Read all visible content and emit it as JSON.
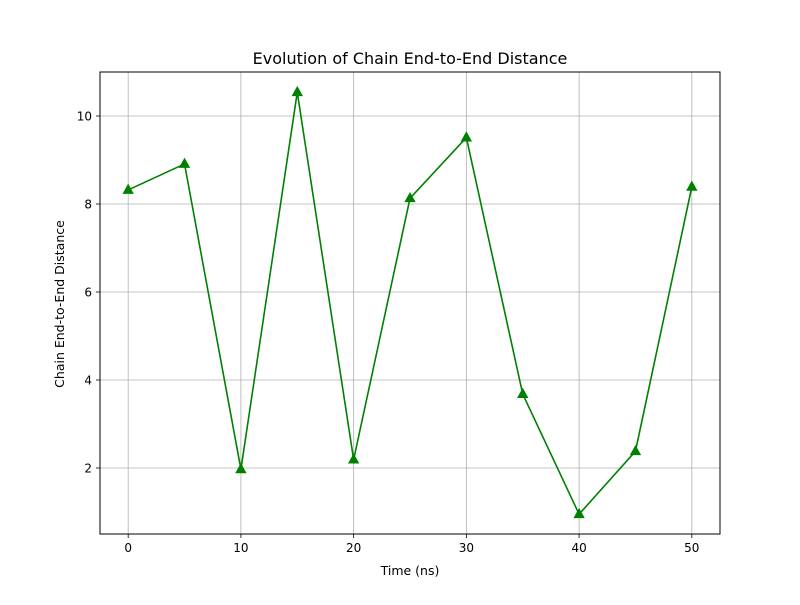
{
  "chart_data": {
    "type": "line",
    "title": "Evolution of Chain End-to-End Distance",
    "xlabel": "Time (ns)",
    "ylabel": "Chain End-to-End Distance",
    "xlim": [
      -2.5,
      52.5
    ],
    "ylim": [
      0.5,
      11.0
    ],
    "x_ticks": [
      0,
      10,
      20,
      30,
      40,
      50
    ],
    "y_ticks": [
      2,
      4,
      6,
      8,
      10
    ],
    "x_tick_labels": [
      "0",
      "10",
      "20",
      "30",
      "40",
      "50"
    ],
    "y_tick_labels": [
      "2",
      "4",
      "6",
      "8",
      "10"
    ],
    "grid": true,
    "legend": "none",
    "series": [
      {
        "color": "#008000",
        "marker": "triangle-up",
        "x": [
          0,
          5,
          10,
          15,
          20,
          25,
          30,
          35,
          40,
          45,
          50
        ],
        "values": [
          8.32,
          8.91,
          1.97,
          10.54,
          2.19,
          8.13,
          9.51,
          3.68,
          0.95,
          2.38,
          8.39
        ]
      }
    ]
  }
}
